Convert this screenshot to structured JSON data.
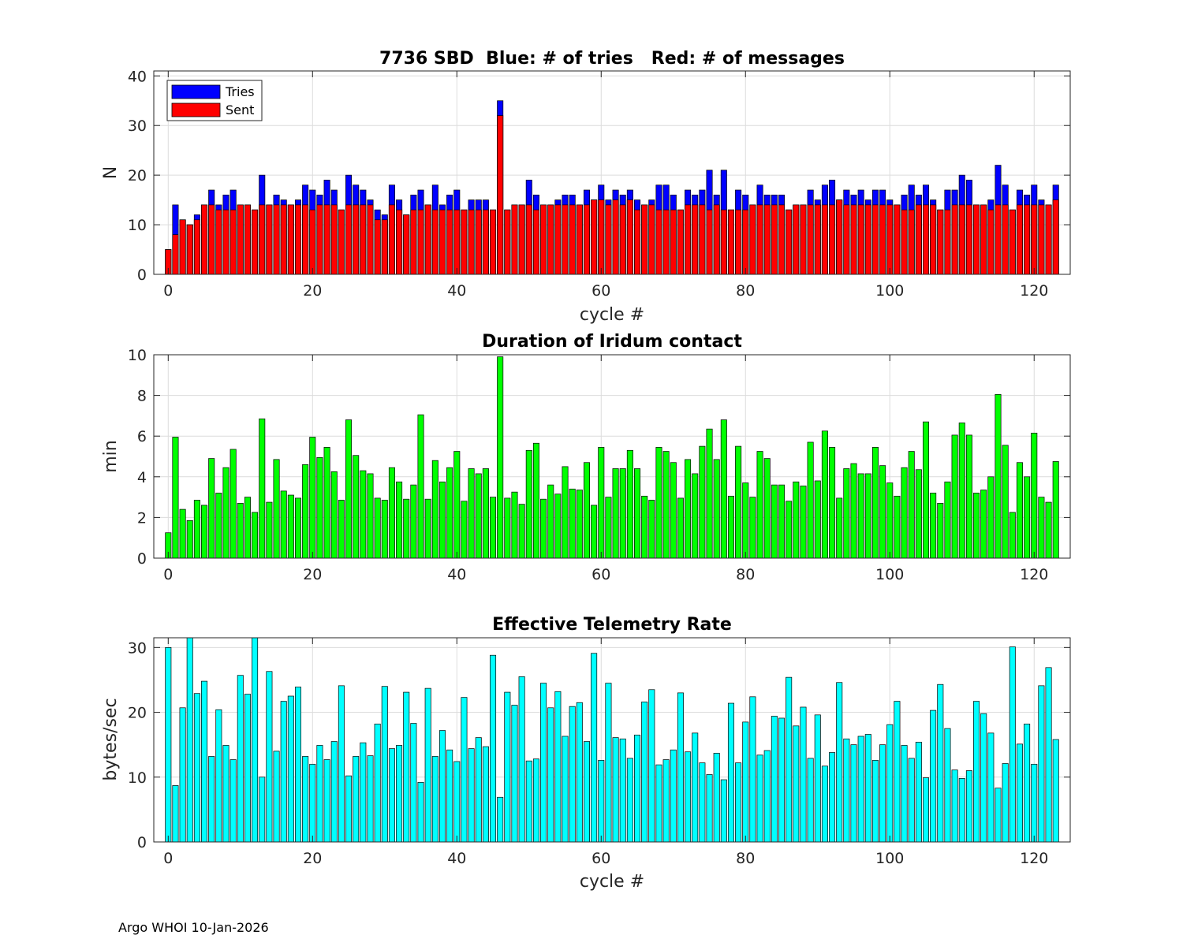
{
  "footer": "Argo WHOI 10-Jan-2026",
  "chart_data": [
    {
      "type": "bar",
      "title": "7736 SBD  Blue: # of tries   Red: # of messages",
      "xlabel": "cycle #",
      "ylabel": "N",
      "xlim": [
        -2,
        125
      ],
      "ylim": [
        0,
        41
      ],
      "xticks": [
        0,
        20,
        40,
        60,
        80,
        100,
        120
      ],
      "yticks": [
        0,
        10,
        20,
        30,
        40
      ],
      "grid": true,
      "legend": {
        "position": "top-left",
        "entries": [
          "Tries",
          "Sent"
        ]
      },
      "x_start": 0,
      "series": [
        {
          "name": "Tries",
          "color": "#0000ff",
          "values": [
            5,
            14,
            11,
            10,
            12,
            14,
            17,
            14,
            16,
            17,
            14,
            14,
            13,
            20,
            14,
            16,
            15,
            14,
            15,
            18,
            17,
            16,
            19,
            17,
            13,
            20,
            18,
            17,
            15,
            13,
            12,
            18,
            15,
            12,
            16,
            17,
            14,
            18,
            14,
            16,
            17,
            13,
            15,
            15,
            15,
            13,
            35,
            13,
            14,
            14,
            19,
            16,
            14,
            14,
            15,
            16,
            16,
            14,
            17,
            15,
            18,
            15,
            17,
            16,
            17,
            15,
            14,
            15,
            18,
            18,
            16,
            13,
            17,
            16,
            17,
            21,
            16,
            21,
            13,
            17,
            16,
            14,
            18,
            16,
            16,
            16,
            13,
            14,
            14,
            17,
            15,
            18,
            19,
            15,
            17,
            16,
            17,
            15,
            17,
            17,
            15,
            14,
            16,
            18,
            16,
            18,
            15,
            13,
            17,
            17,
            20,
            19,
            14,
            14,
            15,
            22,
            18,
            13,
            17,
            16,
            18,
            15,
            14,
            18
          ]
        },
        {
          "name": "Sent",
          "color": "#ff0000",
          "values": [
            5,
            8,
            11,
            10,
            11,
            14,
            14,
            13,
            13,
            13,
            14,
            14,
            13,
            14,
            14,
            14,
            14,
            14,
            14,
            14,
            13,
            14,
            14,
            14,
            13,
            14,
            14,
            14,
            14,
            11,
            11,
            14,
            13,
            12,
            13,
            13,
            14,
            13,
            13,
            13,
            13,
            13,
            13,
            13,
            13,
            13,
            32,
            13,
            14,
            14,
            14,
            13,
            14,
            14,
            14,
            14,
            14,
            14,
            14,
            15,
            15,
            14,
            15,
            14,
            15,
            13,
            14,
            14,
            13,
            13,
            13,
            13,
            14,
            14,
            14,
            13,
            14,
            13,
            13,
            13,
            13,
            14,
            14,
            14,
            14,
            14,
            13,
            14,
            14,
            14,
            14,
            14,
            14,
            15,
            14,
            14,
            14,
            14,
            14,
            14,
            14,
            14,
            13,
            13,
            14,
            14,
            14,
            13,
            13,
            14,
            14,
            14,
            14,
            14,
            13,
            14,
            14,
            13,
            14,
            14,
            14,
            14,
            14,
            15
          ]
        }
      ]
    },
    {
      "type": "bar",
      "title": "Duration of Iridum contact",
      "xlabel": "",
      "ylabel": "min",
      "xlim": [
        -2,
        125
      ],
      "ylim": [
        0,
        10
      ],
      "xticks": [
        0,
        20,
        40,
        60,
        80,
        100,
        120
      ],
      "yticks": [
        0,
        2,
        4,
        6,
        8,
        10
      ],
      "grid": true,
      "x_start": 0,
      "series": [
        {
          "color": "#00ff00",
          "values": [
            1.25,
            5.95,
            2.4,
            1.85,
            2.85,
            2.6,
            4.9,
            3.2,
            4.45,
            5.35,
            2.7,
            3.0,
            2.25,
            6.85,
            2.75,
            4.85,
            3.3,
            3.1,
            2.95,
            4.6,
            5.95,
            4.95,
            5.45,
            4.25,
            2.85,
            6.8,
            5.05,
            4.3,
            4.15,
            2.95,
            2.85,
            4.45,
            3.75,
            2.9,
            3.6,
            7.05,
            2.9,
            4.8,
            3.75,
            4.45,
            5.25,
            2.8,
            4.4,
            4.15,
            4.4,
            3.0,
            9.9,
            2.95,
            3.25,
            2.65,
            5.3,
            5.65,
            2.9,
            3.6,
            3.15,
            4.5,
            3.4,
            3.35,
            4.7,
            2.6,
            5.45,
            3.0,
            4.4,
            4.4,
            5.3,
            4.4,
            3.05,
            2.85,
            5.45,
            5.25,
            4.7,
            2.95,
            4.85,
            4.15,
            5.5,
            6.35,
            4.85,
            6.8,
            3.05,
            5.5,
            3.7,
            3.0,
            5.25,
            4.9,
            3.6,
            3.6,
            2.8,
            3.75,
            3.55,
            5.7,
            3.8,
            6.25,
            5.45,
            2.95,
            4.4,
            4.65,
            4.15,
            4.15,
            5.45,
            4.55,
            3.7,
            3.05,
            4.45,
            5.25,
            4.35,
            6.7,
            3.2,
            2.7,
            3.75,
            6.05,
            6.65,
            6.05,
            3.2,
            3.35,
            4.0,
            8.05,
            5.55,
            2.25,
            4.7,
            4.0,
            6.15,
            3.0,
            2.75,
            4.75
          ]
        }
      ]
    },
    {
      "type": "bar",
      "title": "Effective Telemetry Rate",
      "xlabel": "cycle #",
      "ylabel": "bytes/sec",
      "xlim": [
        -2,
        125
      ],
      "ylim": [
        0,
        31.5
      ],
      "xticks": [
        0,
        20,
        40,
        60,
        80,
        100,
        120
      ],
      "yticks": [
        0,
        10,
        20,
        30
      ],
      "grid": true,
      "x_start": 0,
      "series": [
        {
          "color": "#00ffff",
          "values": [
            30,
            8.7,
            20.7,
            31.5,
            22.9,
            24.8,
            13.2,
            20.4,
            14.9,
            12.7,
            25.7,
            22.8,
            31.5,
            10.0,
            26.3,
            14.0,
            21.7,
            22.5,
            23.9,
            13.2,
            12.0,
            14.9,
            12.7,
            15.5,
            24.1,
            10.2,
            13.2,
            15.3,
            13.3,
            18.2,
            24.0,
            14.4,
            14.9,
            23.1,
            18.3,
            9.2,
            23.7,
            13.2,
            17.2,
            14.2,
            12.4,
            22.3,
            14.4,
            16.1,
            14.7,
            28.8,
            6.9,
            23.1,
            21.1,
            25.5,
            12.5,
            12.8,
            24.5,
            20.7,
            23.2,
            16.3,
            20.9,
            21.5,
            15.5,
            29.1,
            12.6,
            24.5,
            16.1,
            15.9,
            12.9,
            16.5,
            21.6,
            23.5,
            11.9,
            12.7,
            14.2,
            23.0,
            13.9,
            16.8,
            12.2,
            10.4,
            13.7,
            9.6,
            21.4,
            12.2,
            18.5,
            22.4,
            13.4,
            14.1,
            19.4,
            19.1,
            25.4,
            17.9,
            20.8,
            12.9,
            19.6,
            11.7,
            13.8,
            24.6,
            15.9,
            15.0,
            16.3,
            16.6,
            12.6,
            15.0,
            18.1,
            21.7,
            14.9,
            12.9,
            15.4,
            9.9,
            20.3,
            24.3,
            17.5,
            11.1,
            9.8,
            11.0,
            21.7,
            19.8,
            16.8,
            8.3,
            12.1,
            30.1,
            15.1,
            18.2,
            12.0,
            24.1,
            26.9,
            15.8
          ]
        }
      ]
    }
  ]
}
